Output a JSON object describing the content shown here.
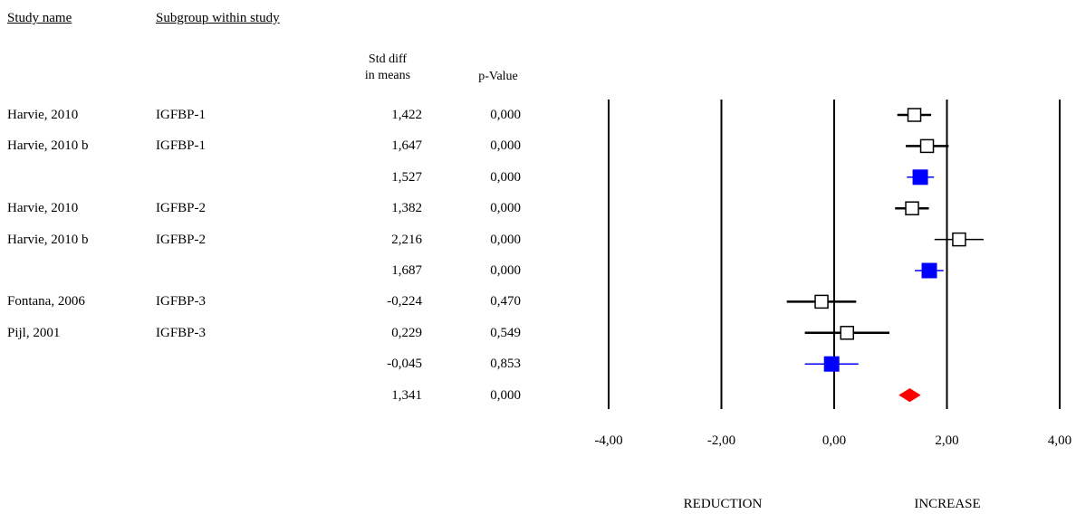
{
  "headers": {
    "study_name": "Study name",
    "subgroup": "Subgroup within study",
    "std_diff_line1": "Std diff",
    "std_diff_line2": "in means",
    "p_value": "p-Value"
  },
  "direction_labels": {
    "left": "REDUCTION",
    "right": "INCREASE"
  },
  "colors": {
    "study": "#000000",
    "subgroup_summary": "#0000ff",
    "overall": "#ff0000"
  },
  "chart_data": {
    "type": "forest",
    "xlim": [
      -4,
      4
    ],
    "x_ticks": [
      "-4,00",
      "-2,00",
      "0,00",
      "2,00",
      "4,00"
    ],
    "x_tick_values": [
      -4,
      -2,
      0,
      2,
      4
    ],
    "grid": true,
    "rows": [
      {
        "study": "Harvie, 2010",
        "subgroup": "IGFBP-1",
        "value_label": "1,422",
        "p_label": "0,000",
        "estimate": 1.422,
        "ci": [
          1.12,
          1.72
        ],
        "kind": "study"
      },
      {
        "study": "Harvie, 2010 b",
        "subgroup": "IGFBP-1",
        "value_label": "1,647",
        "p_label": "0,000",
        "estimate": 1.647,
        "ci": [
          1.27,
          2.03
        ],
        "kind": "study"
      },
      {
        "study": "",
        "subgroup": "",
        "value_label": "1,527",
        "p_label": "0,000",
        "estimate": 1.527,
        "ci": [
          1.29,
          1.77
        ],
        "kind": "subgroup"
      },
      {
        "study": "Harvie, 2010",
        "subgroup": "IGFBP-2",
        "value_label": "1,382",
        "p_label": "0,000",
        "estimate": 1.382,
        "ci": [
          1.08,
          1.68
        ],
        "kind": "study"
      },
      {
        "study": "Harvie, 2010 b",
        "subgroup": "IGFBP-2",
        "value_label": "2,216",
        "p_label": "0,000",
        "estimate": 2.216,
        "ci": [
          1.78,
          2.65
        ],
        "kind": "study"
      },
      {
        "study": "",
        "subgroup": "",
        "value_label": "1,687",
        "p_label": "0,000",
        "estimate": 1.687,
        "ci": [
          1.43,
          1.94
        ],
        "kind": "subgroup"
      },
      {
        "study": "Fontana, 2006",
        "subgroup": "IGFBP-3",
        "value_label": "-0,224",
        "p_label": "0,470",
        "estimate": -0.224,
        "ci": [
          -0.84,
          0.39
        ],
        "kind": "study"
      },
      {
        "study": "Pijl, 2001",
        "subgroup": "IGFBP-3",
        "value_label": "0,229",
        "p_label": "0,549",
        "estimate": 0.229,
        "ci": [
          -0.52,
          0.98
        ],
        "kind": "study"
      },
      {
        "study": "",
        "subgroup": "",
        "value_label": "-0,045",
        "p_label": "0,853",
        "estimate": -0.045,
        "ci": [
          -0.52,
          0.43
        ],
        "kind": "subgroup"
      },
      {
        "study": "",
        "subgroup": "",
        "value_label": "1,341",
        "p_label": "0,000",
        "estimate": 1.341,
        "ci": [
          1.16,
          1.52
        ],
        "kind": "overall"
      }
    ]
  }
}
